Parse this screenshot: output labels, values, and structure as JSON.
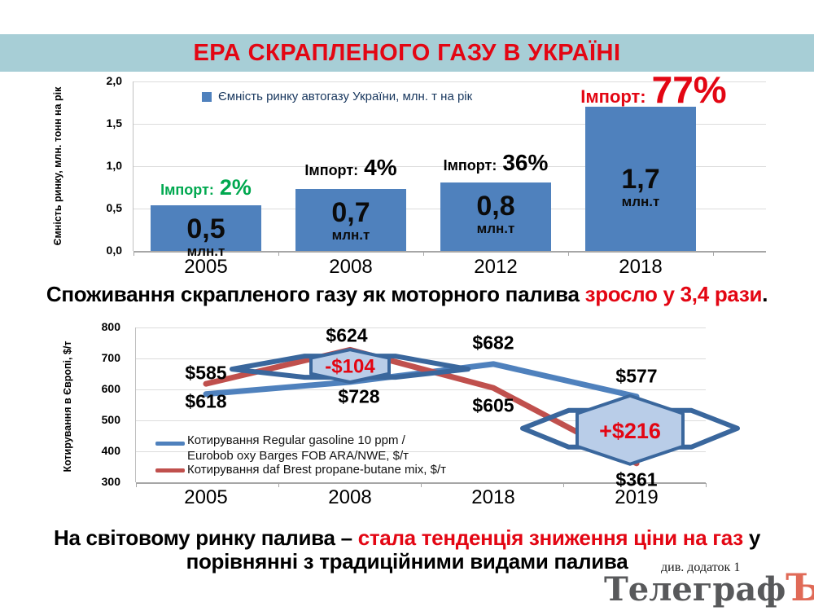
{
  "banner": {
    "title": "ЕРА СКРАПЛЕНОГО ГАЗУ В УКРАЇНІ"
  },
  "colors": {
    "banner_bg": "#a7ced6",
    "title_red": "#e30613",
    "bar_blue": "#4f81bd",
    "line_blue": "#4f81bd",
    "line_red": "#c0504d",
    "import_green": "#00a84f",
    "badge_fill": "#b9cde8",
    "badge_border": "#3a679d",
    "badge_text_red": "#e30613",
    "grid_gray": "#dcdcdc",
    "axis_gray": "#a6a6a6",
    "legend_navy": "#17365d",
    "watermark_gray": "#58595b",
    "watermark_red": "#e06a57"
  },
  "statement1": {
    "black1": "Споживання скрапленого газу як моторного палива ",
    "red": "зросло у 3,4 рази",
    "black2": "."
  },
  "statement2": {
    "line1_black": "На світовому ринку палива – ",
    "line1_red": "стала тенденція зниження ціни на газ",
    "line1_tail": " у",
    "line2": "порівнянні з традиційними видами палива"
  },
  "note": "див. додаток 1",
  "watermark": {
    "gray": "Телеграф",
    "red": "Ъ"
  },
  "chart_data": [
    {
      "type": "bar",
      "title": "",
      "ylabel": "Ємність  ринку,  млн. тонн на рік",
      "legend": [
        {
          "label": "Ємність ринку автогазу України, млн. т на рік",
          "color": "#4f81bd"
        }
      ],
      "categories": [
        "2005",
        "2008",
        "2012",
        "2018"
      ],
      "values": [
        0.5,
        0.7,
        0.8,
        1.7
      ],
      "plotted_heights": [
        0.54,
        0.73,
        0.81,
        1.7
      ],
      "bar_value_labels": [
        "0,5",
        "0,7",
        "0,8",
        "1,7"
      ],
      "bar_unit_label": "млн.т",
      "import_labels": [
        {
          "prefix": "Імпорт:",
          "pct": "2%",
          "color": "#00a84f",
          "pct_size": 27
        },
        {
          "prefix": "Імпорт:",
          "pct": "4%",
          "color": "#000000",
          "pct_size": 28
        },
        {
          "prefix": "Імпорт:",
          "pct": "36%",
          "color": "#000000",
          "pct_size": 28
        },
        {
          "prefix": "Імпорт:",
          "pct": "77%",
          "color": "#e30613",
          "pct_size": 46
        }
      ],
      "ylim": [
        0,
        2.0
      ],
      "yticks": [
        "2,0",
        "1,5",
        "1,0",
        "0,5",
        "0,0"
      ],
      "grid": true,
      "legend_position": "top-inside"
    },
    {
      "type": "line",
      "ylabel": "Котирування  в Європі, $/т",
      "categories": [
        "2005",
        "2008",
        "2018",
        "2019"
      ],
      "series": [
        {
          "name_lines": [
            "Котирування  Regular gasoline  10 ppm /",
            "Eurobob oxy Barges FOB ARA/NWE, $/т"
          ],
          "color": "#4f81bd",
          "values": [
            585,
            624,
            682,
            577
          ],
          "labels": [
            "$585",
            "$624",
            "$682",
            "$577"
          ]
        },
        {
          "name_lines": [
            "Котирування  daf Brest propane-butane mix, $/т"
          ],
          "color": "#c0504d",
          "values": [
            618,
            728,
            605,
            361
          ],
          "labels": [
            "$618",
            "$728",
            "$605",
            "$361"
          ]
        }
      ],
      "badges": [
        {
          "text": "-$104",
          "cat_index": 1
        },
        {
          "text": "+$216",
          "cat_index": 3
        }
      ],
      "ylim": [
        300,
        800
      ],
      "yticks": [
        "800",
        "700",
        "600",
        "500",
        "400",
        "300"
      ],
      "grid": true,
      "legend_position": "bottom-left-inside"
    }
  ]
}
